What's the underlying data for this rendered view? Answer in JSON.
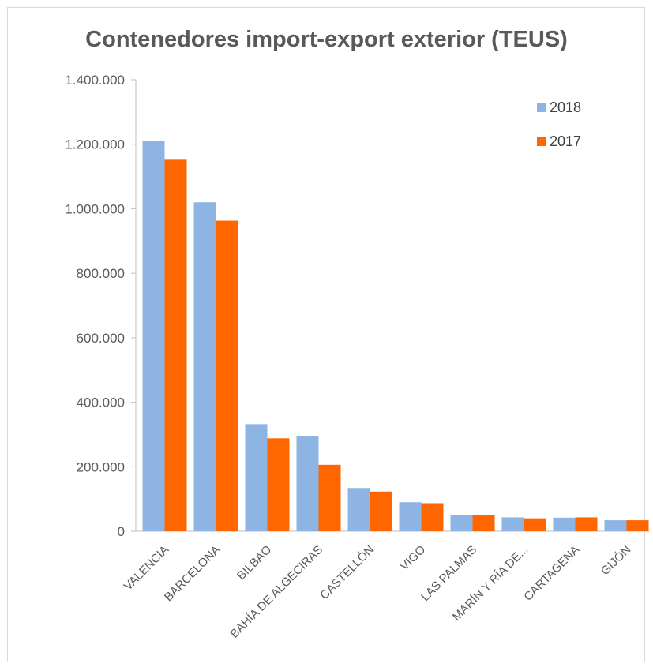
{
  "chart_data": {
    "type": "bar",
    "title": "Contenedores import-export exterior (TEUS)",
    "xlabel": "",
    "ylabel": "",
    "categories": [
      "VALENCIA",
      "BARCELONA",
      "BILBAO",
      "BAHÍA DE ALGECIRAS",
      "CASTELLÓN",
      "VIGO",
      "LAS PALMAS",
      "MARÍN Y RÍA DE...",
      "CARTAGENA",
      "GIJÓN"
    ],
    "series": [
      {
        "name": "2018",
        "color": "#8eb4e3",
        "values": [
          1210000,
          1020000,
          332000,
          296000,
          134000,
          90000,
          50000,
          43000,
          42000,
          34000
        ]
      },
      {
        "name": "2017",
        "color": "#ff6600",
        "values": [
          1152000,
          963000,
          288000,
          206000,
          123000,
          87000,
          49000,
          40000,
          43000,
          34000
        ]
      }
    ],
    "ylim": [
      0,
      1400000
    ],
    "yticks": [
      0,
      200000,
      400000,
      600000,
      800000,
      1000000,
      1200000,
      1400000
    ],
    "ytick_labels": [
      "0",
      "200.000",
      "400.000",
      "600.000",
      "800.000",
      "1.000.000",
      "1.200.000",
      "1.400.000"
    ],
    "grid": false,
    "legend_position": "top-right"
  }
}
